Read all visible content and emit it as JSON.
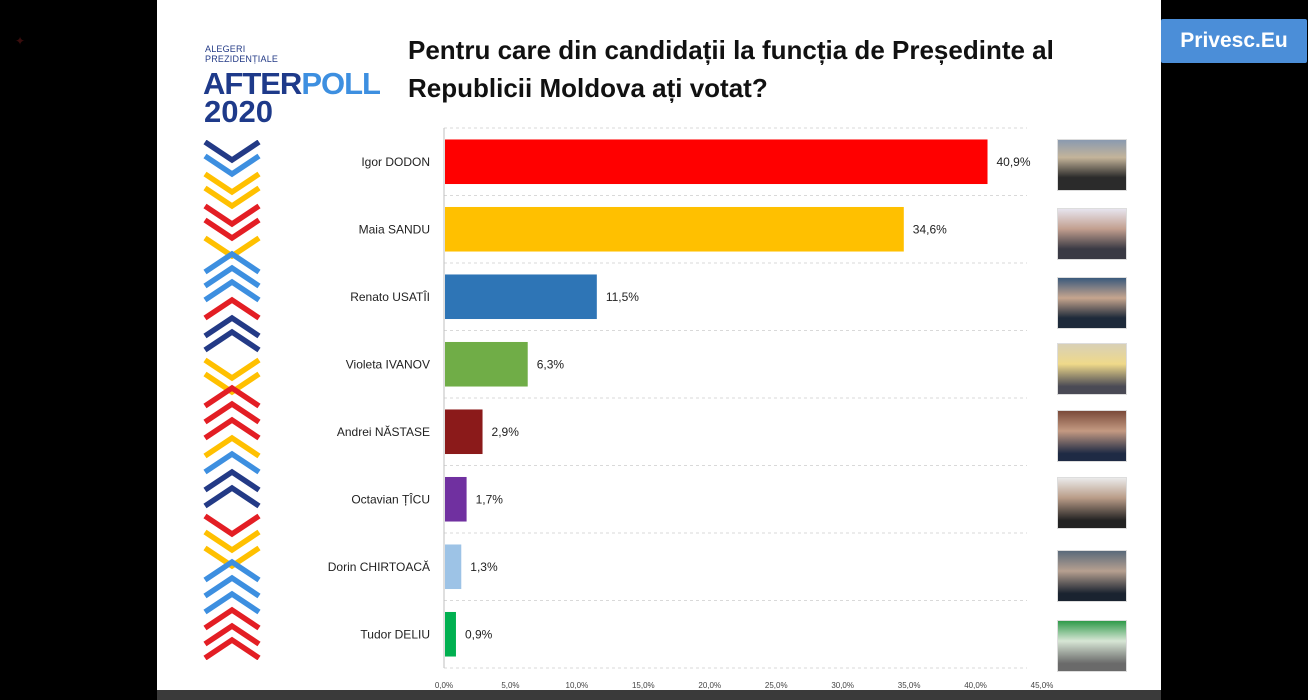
{
  "watermark": {
    "label": "Privesc.Eu"
  },
  "logo": {
    "line1": "ALEGERI",
    "line2": "PREZIDENȚIALE",
    "after": "AFTER",
    "poll": "POLL",
    "year": "2020"
  },
  "chart_data": {
    "type": "bar",
    "orientation": "horizontal",
    "title": "Pentru care din candidații la funcția de Președinte al Republicii Moldova ați votat?",
    "title_lines": [
      "Pentru care din candidații la funcția de Președinte al",
      "Republicii Moldova ați votat?"
    ],
    "categories": [
      "Igor DODON",
      "Maia SANDU",
      "Renato USATÎI",
      "Violeta IVANOV",
      "Andrei NĂSTASE",
      "Octavian ȚÎCU",
      "Dorin CHIRTOACĂ",
      "Tudor DELIU"
    ],
    "values": [
      40.9,
      34.6,
      11.5,
      6.3,
      2.9,
      1.7,
      1.3,
      0.9
    ],
    "value_labels": [
      "40,9%",
      "34,6%",
      "11,5%",
      "6,3%",
      "2,9%",
      "1,7%",
      "1,3%",
      "0,9%"
    ],
    "colors": [
      "#ff0000",
      "#ffc000",
      "#2e75b6",
      "#70ad47",
      "#8b1a1a",
      "#7030a0",
      "#9dc3e6",
      "#00b050"
    ],
    "xlim": [
      0,
      45
    ],
    "x_ticks": [
      "0,0%",
      "5,0%",
      "10,0%",
      "15,0%",
      "20,0%",
      "25,0%",
      "30,0%",
      "35,0%",
      "40,0%",
      "45,0%"
    ],
    "grid": true
  },
  "colors": {
    "background": "#000000",
    "slide": "#ffffff",
    "watermark": "#4b8ed8",
    "logo_dark": "#1e3a8a",
    "logo_light": "#3d8fe0"
  }
}
